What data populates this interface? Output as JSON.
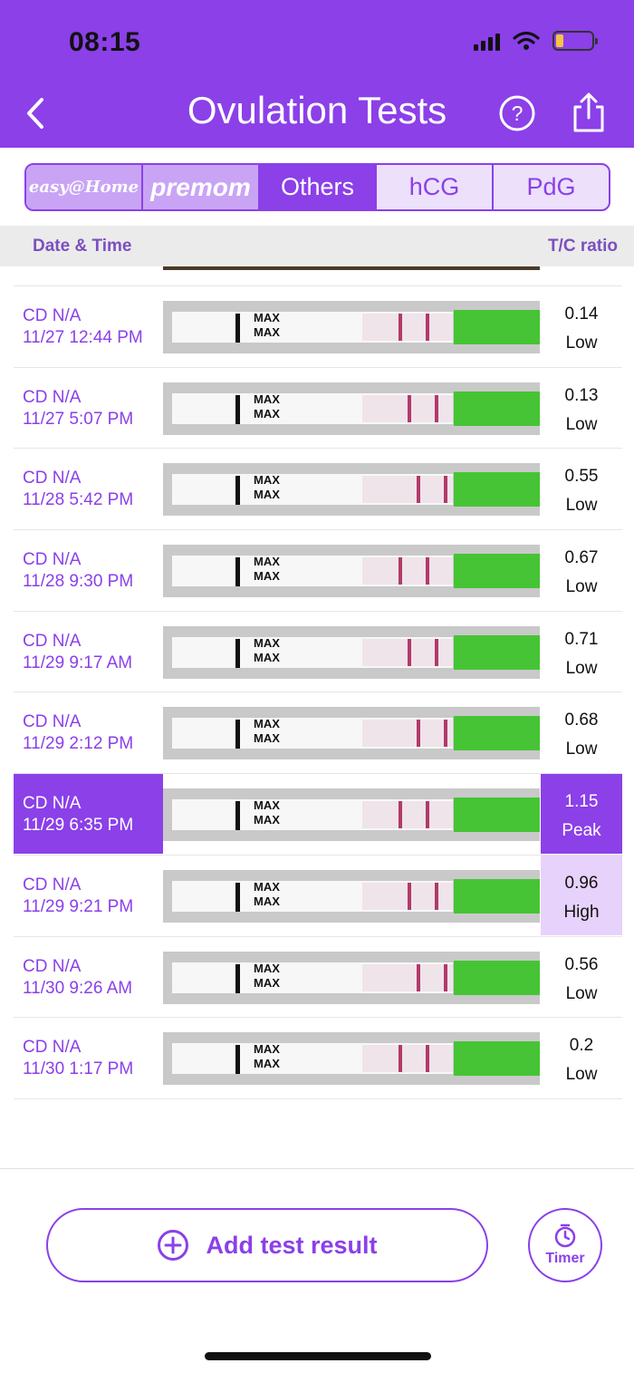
{
  "status_bar": {
    "time": "08:15"
  },
  "header": {
    "title": "Ovulation Tests"
  },
  "tabs": [
    {
      "label": "easy@Home",
      "kind": "brand"
    },
    {
      "label": "premom",
      "kind": "brand"
    },
    {
      "label": "Others",
      "kind": "active"
    },
    {
      "label": "hCG",
      "kind": "normal"
    },
    {
      "label": "PdG",
      "kind": "normal"
    }
  ],
  "columns": {
    "date_time": "Date & Time",
    "ratio": "T/C ratio"
  },
  "rows": [
    {
      "cd": "CD N/A",
      "datetime": "11/27 12:44 PM",
      "ratio": "0.14",
      "level": "Low"
    },
    {
      "cd": "CD N/A",
      "datetime": "11/27 5:07 PM",
      "ratio": "0.13",
      "level": "Low"
    },
    {
      "cd": "CD N/A",
      "datetime": "11/28 5:42 PM",
      "ratio": "0.55",
      "level": "Low"
    },
    {
      "cd": "CD N/A",
      "datetime": "11/28 9:30 PM",
      "ratio": "0.67",
      "level": "Low"
    },
    {
      "cd": "CD N/A",
      "datetime": "11/29 9:17 AM",
      "ratio": "0.71",
      "level": "Low"
    },
    {
      "cd": "CD N/A",
      "datetime": "11/29 2:12 PM",
      "ratio": "0.68",
      "level": "Low"
    },
    {
      "cd": "CD N/A",
      "datetime": "11/29 6:35 PM",
      "ratio": "1.15",
      "level": "Peak"
    },
    {
      "cd": "CD N/A",
      "datetime": "11/29 9:21 PM",
      "ratio": "0.96",
      "level": "High"
    },
    {
      "cd": "CD N/A",
      "datetime": "11/30 9:26 AM",
      "ratio": "0.56",
      "level": "Low"
    },
    {
      "cd": "CD N/A",
      "datetime": "11/30 1:17 PM",
      "ratio": "0.2",
      "level": "Low"
    }
  ],
  "strip_text": "MAX",
  "actions": {
    "add_label": "Add test result",
    "timer_label": "Timer"
  },
  "colors": {
    "primary": "#8b40e8",
    "peak_bg": "#8b40e8",
    "high_bg": "#e7d2fb",
    "strip_green": "#46c435"
  }
}
